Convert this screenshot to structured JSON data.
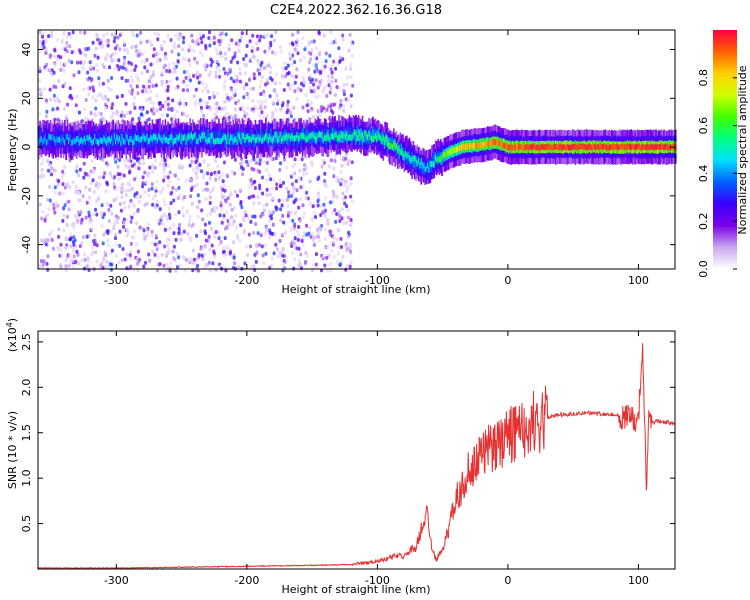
{
  "title": "C2E4.2022.362.16.36.G18",
  "chart_data": [
    {
      "type": "heatmap",
      "xlabel": "Height of straight line (km)",
      "ylabel": "Frequency (Hz)",
      "xlim": [
        -360,
        128
      ],
      "ylim": [
        -50,
        48
      ],
      "xticks": [
        -300,
        -200,
        -100,
        0,
        100
      ],
      "xtick_labels": [
        "-300",
        "-200",
        "-100",
        "0",
        "100"
      ],
      "yticks": [
        -40,
        -20,
        0,
        20,
        40
      ],
      "ytick_labels": [
        "-40",
        "-20",
        "0",
        "20",
        "40"
      ],
      "colorbar": {
        "label": "Normalized spectral amplitude",
        "range": [
          0,
          1
        ],
        "ticks": [
          0.0,
          0.2,
          0.4,
          0.6,
          0.8
        ],
        "tick_labels": [
          "0.0",
          "0.2",
          "0.4",
          "0.6",
          "0.8"
        ],
        "colors": [
          "#ffffff",
          "#c9a8f0",
          "#7a00e6",
          "#3a00ff",
          "#0060ff",
          "#00e0ff",
          "#00ff80",
          "#40ff00",
          "#d0ff00",
          "#ffd000",
          "#ff6000",
          "#ff0040"
        ]
      },
      "ridge": {
        "x": [
          -360,
          -300,
          -250,
          -200,
          -150,
          -120,
          -100,
          -90,
          -80,
          -70,
          -62,
          -55,
          -45,
          -35,
          -20,
          -10,
          0,
          20,
          50,
          100,
          128
        ],
        "y": [
          3,
          3,
          3.5,
          3.5,
          4,
          5,
          4,
          1,
          -3,
          -6,
          -9,
          -5,
          -2,
          0,
          1,
          2,
          0,
          0,
          0,
          0,
          0
        ],
        "amplitude": [
          0.42,
          0.45,
          0.48,
          0.5,
          0.52,
          0.55,
          0.55,
          0.6,
          0.55,
          0.5,
          0.45,
          0.55,
          0.7,
          0.8,
          0.85,
          0.9,
          0.9,
          0.95,
          0.95,
          0.95,
          0.95
        ]
      },
      "noise_region_xlim": [
        -360,
        -120
      ]
    },
    {
      "type": "line",
      "xlabel": "Height of straight line (km)",
      "ylabel": "SNR (10 * v/v)",
      "yscale_note": "(x10^4)",
      "xlim": [
        -360,
        128
      ],
      "ylim": [
        0,
        2.62
      ],
      "xticks": [
        -300,
        -200,
        -100,
        0,
        100
      ],
      "xtick_labels": [
        "-300",
        "-200",
        "-100",
        "0",
        "100"
      ],
      "yticks": [
        0.5,
        1.0,
        1.5,
        2.0,
        2.5
      ],
      "ytick_labels": [
        "0.5",
        "1.0",
        "1.5",
        "2.0",
        "2.5"
      ],
      "line_color": "#e83030",
      "series": [
        {
          "x": [
            -360,
            -300,
            -250,
            -200,
            -150,
            -120,
            -100,
            -90,
            -80,
            -70,
            -65,
            -62,
            -58,
            -55,
            -50,
            -45,
            -40,
            -35,
            -30,
            -25,
            -20,
            -15,
            -10,
            -5,
            0,
            10,
            20,
            30,
            40,
            50,
            60,
            70,
            80,
            90,
            95,
            100,
            103,
            105,
            106,
            108,
            110,
            115,
            120,
            128
          ],
          "y": [
            0.01,
            0.01,
            0.02,
            0.03,
            0.04,
            0.05,
            0.08,
            0.13,
            0.15,
            0.25,
            0.5,
            0.6,
            0.2,
            0.1,
            0.2,
            0.45,
            0.75,
            0.9,
            1.1,
            1.2,
            1.25,
            1.3,
            1.35,
            1.4,
            1.45,
            1.55,
            1.62,
            1.67,
            1.7,
            1.71,
            1.72,
            1.71,
            1.7,
            1.67,
            1.65,
            1.6,
            2.4,
            1.6,
            0.8,
            1.7,
            1.6,
            1.63,
            1.62,
            1.6
          ]
        }
      ]
    }
  ]
}
